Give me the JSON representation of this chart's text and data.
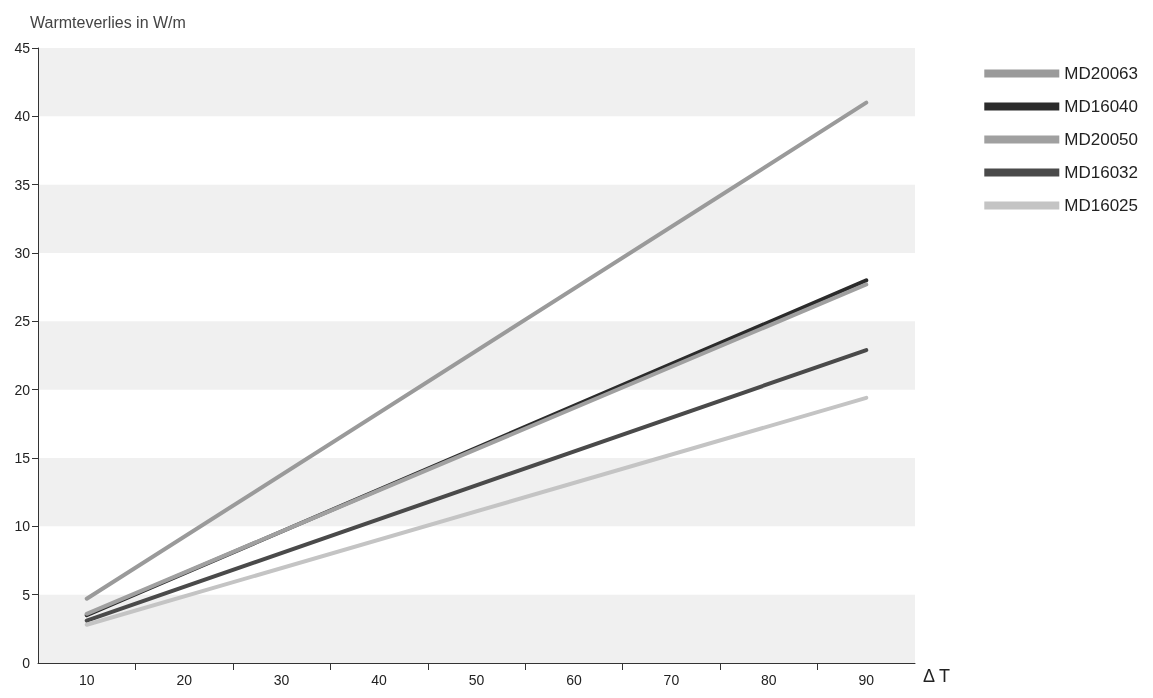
{
  "chart_data": {
    "type": "line",
    "ylabel": "Warmteverlies in W/m",
    "xlabel": "Δ T",
    "xlim": [
      5,
      95
    ],
    "xticks": [
      10,
      {
        "value": 15,
        "label": null
      },
      20,
      {
        "value": 25,
        "label": null
      },
      30,
      {
        "value": 35,
        "label": null
      },
      40,
      {
        "value": 45,
        "label": null
      },
      50,
      {
        "value": 55,
        "label": null
      },
      60,
      {
        "value": 65,
        "label": null
      },
      70,
      {
        "value": 75,
        "label": null
      },
      80,
      {
        "value": 85,
        "label": null
      },
      90
    ],
    "ylim": [
      0,
      45
    ],
    "yticks": [
      0,
      5,
      10,
      15,
      20,
      25,
      30,
      35,
      40,
      45
    ],
    "bands": [
      {
        "axis": "y",
        "from": 0,
        "to": 5,
        "color": "#f0f0f0"
      },
      {
        "axis": "y",
        "from": 10,
        "to": 15,
        "color": "#f0f0f0"
      },
      {
        "axis": "y",
        "from": 20,
        "to": 25,
        "color": "#f0f0f0"
      },
      {
        "axis": "y",
        "from": 30,
        "to": 35,
        "color": "#f0f0f0"
      },
      {
        "axis": "y",
        "from": 40,
        "to": 45,
        "color": "#f0f0f0"
      }
    ],
    "x": [
      10,
      90
    ],
    "series": [
      {
        "name": "MD20063",
        "color": "#9a9a9a",
        "values": [
          4.7,
          41
        ]
      },
      {
        "name": "MD16040",
        "color": "#2b2b2b",
        "values": [
          3.5,
          28
        ]
      },
      {
        "name": "MD20050",
        "color": "#a0a0a0",
        "values": [
          3.6,
          27.7
        ]
      },
      {
        "name": "MD16032",
        "color": "#4a4a4a",
        "values": [
          3.1,
          22.9
        ]
      },
      {
        "name": "MD16025",
        "color": "#c4c4c4",
        "values": [
          2.8,
          19.4
        ]
      }
    ],
    "legend": "right",
    "marker": "none",
    "line_style": "solid",
    "grid": false
  }
}
